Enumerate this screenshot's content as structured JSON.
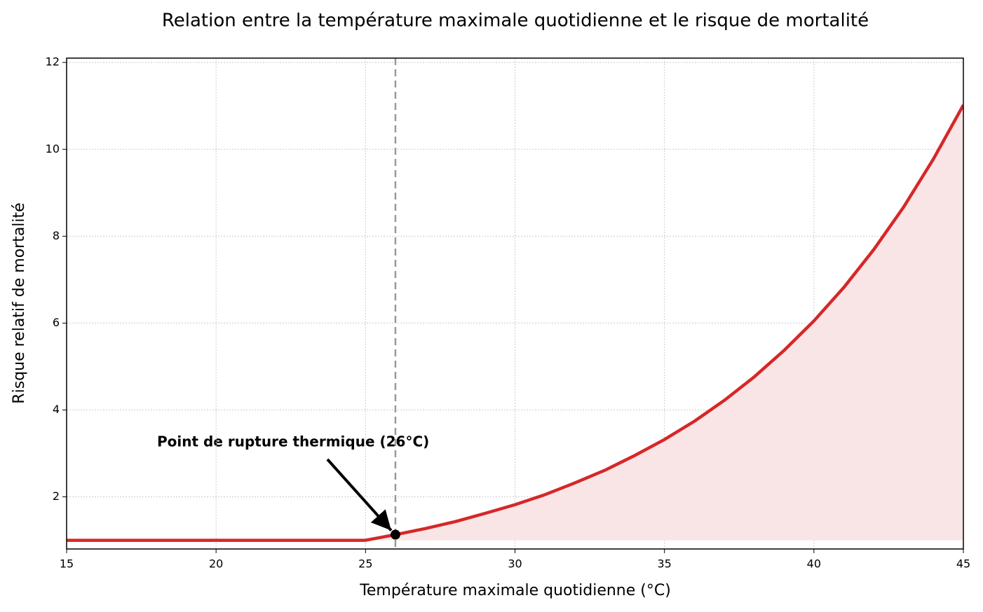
{
  "chart_data": {
    "type": "line",
    "title": "Relation entre la température maximale quotidienne et le risque de mortalité",
    "xlabel": "Température maximale quotidienne (°C)",
    "ylabel": "Risque relatif de mortalité",
    "x": [
      15,
      25,
      26,
      27,
      28,
      29,
      30,
      31,
      32,
      33,
      34,
      35,
      36,
      37,
      38,
      39,
      40,
      41,
      42,
      43,
      44,
      45
    ],
    "series": [
      {
        "name": "Risque relatif",
        "color": "#d62728",
        "values": [
          1,
          1,
          1.13,
          1.27,
          1.43,
          1.62,
          1.82,
          2.05,
          2.32,
          2.61,
          2.95,
          3.32,
          3.74,
          4.22,
          4.76,
          5.37,
          6.05,
          6.82,
          7.69,
          8.67,
          9.78,
          11.02
        ]
      }
    ],
    "fill_color": "#f9e5e6",
    "fill_to": 1,
    "breakpoint": {
      "x": 26,
      "y": 1.13
    },
    "annotation": "Point de rupture thermique (26°C)",
    "xlim": [
      15,
      45
    ],
    "xticks": [
      15,
      20,
      25,
      30,
      35,
      40,
      45
    ],
    "ylim": [
      0.8,
      12.1
    ],
    "yticks": [
      2,
      4,
      6,
      8,
      10,
      12
    ],
    "grid": true
  }
}
